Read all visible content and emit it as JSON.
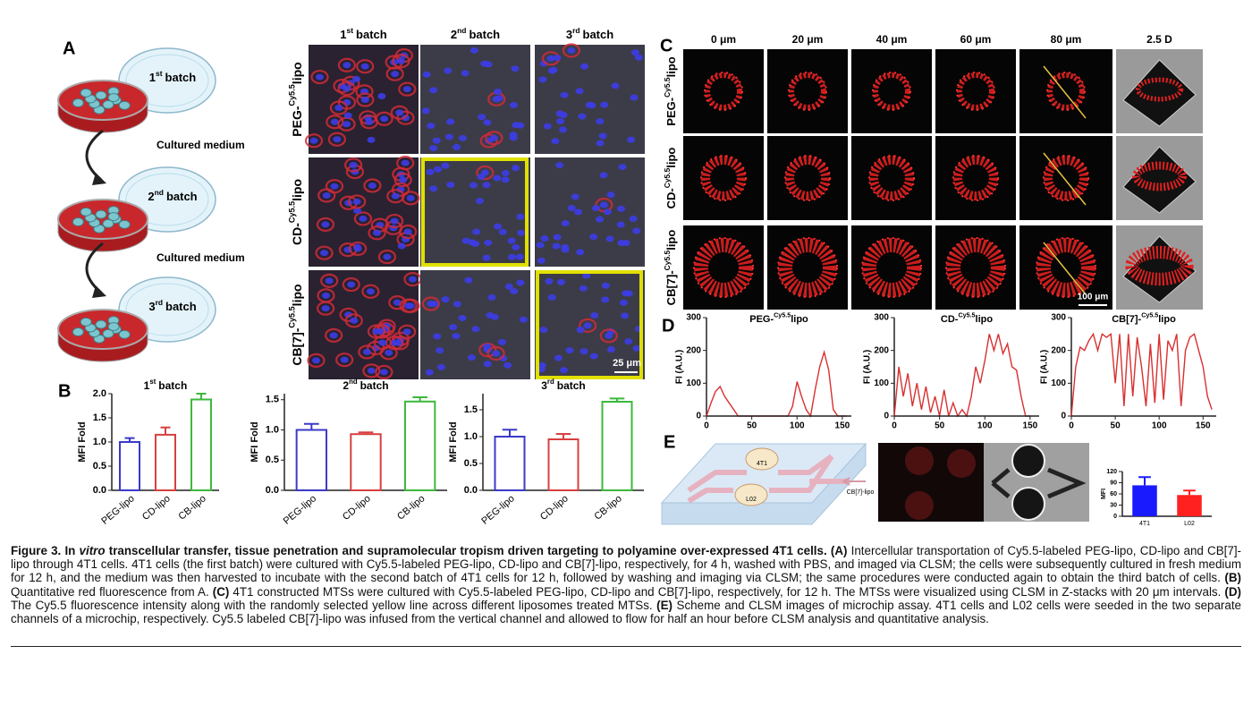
{
  "panel_labels": [
    "A",
    "B",
    "C",
    "D",
    "E"
  ],
  "scheme_a": {
    "dishes": [
      {
        "text": "1",
        "sup": "st",
        "tail": "batch"
      },
      {
        "text": "2",
        "sup": "nd",
        "tail": "batch"
      },
      {
        "text": "3",
        "sup": "rd",
        "tail": "batch"
      }
    ],
    "arrows": [
      "Cultured medium",
      "Cultured medium"
    ]
  },
  "microscopy": {
    "columns": [
      {
        "text": "1",
        "sup": "st",
        "tail": "batch"
      },
      {
        "text": "2",
        "sup": "nd",
        "tail": "batch"
      },
      {
        "text": "3",
        "sup": "rd",
        "tail": "batch"
      }
    ],
    "rows": [
      {
        "text": "PEG-",
        "sup": "Cy5.5",
        "tail": "lipo"
      },
      {
        "text": "CD-",
        "sup": "Cy5.5",
        "tail": "lipo"
      },
      {
        "text": "CB[7]-",
        "sup": "Cy5.5",
        "tail": "lipo"
      }
    ],
    "scale_bar": "25 μm"
  },
  "spheroids": {
    "columns": [
      "0 μm",
      "20 μm",
      "40 μm",
      "60 μm",
      "80 μm",
      "2.5 D"
    ],
    "rows": [
      {
        "text": "PEG-",
        "sup": "Cy5.5",
        "tail": "lipo"
      },
      {
        "text": "CD-",
        "sup": "Cy5.5",
        "tail": "lipo"
      },
      {
        "text": "CB[7]-",
        "sup": "Cy5.5",
        "tail": "lipo"
      }
    ],
    "scale_bar": "100 μm"
  },
  "microchip": {
    "channels": [
      "4T1",
      "L02"
    ],
    "inlet": "CB[7]-lipo"
  },
  "chart_data": [
    {
      "type": "bar",
      "title": {
        "text": "1",
        "sup": "st",
        "tail": "batch"
      },
      "ylabel": "MFI Fold",
      "categories": [
        "PEG-lipo",
        "CD-lipo",
        "CB-lipo"
      ],
      "values": [
        1.0,
        1.15,
        1.88
      ],
      "errors": [
        0.08,
        0.15,
        0.12
      ],
      "colors": [
        "#3a3ac8",
        "#d84040",
        "#3cb83c"
      ],
      "filled": false,
      "ylim": [
        0,
        2
      ],
      "yticks": [
        {
          "value": 0,
          "label": "0.0"
        },
        {
          "value": 0.5,
          "label": "0.5"
        },
        {
          "value": 1,
          "label": "1.0"
        },
        {
          "value": 1.5,
          "label": "1.5"
        },
        {
          "value": 2,
          "label": "2.0"
        }
      ]
    },
    {
      "type": "bar",
      "title": {
        "text": "2",
        "sup": "nd",
        "tail": "batch"
      },
      "ylabel": "MFI Fold",
      "categories": [
        "PEG-lipo",
        "CD-lipo",
        "CB-lipo"
      ],
      "values": [
        1.0,
        0.93,
        1.47
      ],
      "errors": [
        0.1,
        0.03,
        0.07
      ],
      "colors": [
        "#3a3ac8",
        "#d84040",
        "#3cb83c"
      ],
      "filled": false,
      "ylim": [
        0,
        1.6
      ],
      "yticks": [
        {
          "value": 0,
          "label": "0.0"
        },
        {
          "value": 0.5,
          "label": "0.5"
        },
        {
          "value": 1,
          "label": "1.0"
        },
        {
          "value": 1.5,
          "label": "1.5"
        }
      ]
    },
    {
      "type": "bar",
      "title": {
        "text": "3",
        "sup": "rd",
        "tail": "batch"
      },
      "ylabel": "MFI Fold",
      "categories": [
        "PEG-lipo",
        "CD-lipo",
        "CB-lipo"
      ],
      "values": [
        1.0,
        0.95,
        1.65
      ],
      "errors": [
        0.13,
        0.1,
        0.06
      ],
      "colors": [
        "#3a3ac8",
        "#d84040",
        "#3cb83c"
      ],
      "filled": false,
      "ylim": [
        0,
        1.8
      ],
      "yticks": [
        {
          "value": 0,
          "label": "0.0"
        },
        {
          "value": 0.5,
          "label": "0.5"
        },
        {
          "value": 1,
          "label": "1.0"
        },
        {
          "value": 1.5,
          "label": "1.5"
        }
      ]
    },
    {
      "type": "line",
      "title": {
        "text": "PEG-",
        "sup": "Cy5.5",
        "tail": "lipo"
      },
      "ylabel": "FI (A.U.)",
      "x": [
        0,
        5,
        10,
        15,
        20,
        25,
        30,
        35,
        40,
        45,
        50,
        55,
        60,
        65,
        70,
        75,
        80,
        85,
        90,
        95,
        100,
        105,
        110,
        115,
        120,
        125,
        130,
        135,
        140,
        145,
        150,
        155
      ],
      "series": [
        {
          "color": "#d83030",
          "values": [
            0,
            40,
            75,
            90,
            60,
            40,
            20,
            0,
            0,
            0,
            0,
            0,
            0,
            0,
            0,
            0,
            0,
            0,
            0,
            30,
            105,
            60,
            20,
            0,
            80,
            150,
            195,
            140,
            20,
            0,
            0,
            0
          ]
        }
      ],
      "xlim": [
        0,
        160
      ],
      "ylim": [
        0,
        300
      ],
      "xticks": [
        0,
        50,
        100,
        150
      ],
      "yticks": [
        0,
        100,
        200,
        300
      ]
    },
    {
      "type": "line",
      "title": {
        "text": "CD-",
        "sup": "Cy5.5",
        "tail": "lipo"
      },
      "ylabel": "FI (A.U.)",
      "x": [
        0,
        5,
        10,
        15,
        20,
        25,
        30,
        35,
        40,
        45,
        50,
        55,
        60,
        65,
        70,
        75,
        80,
        85,
        90,
        95,
        100,
        105,
        110,
        115,
        120,
        125,
        130,
        135,
        140,
        145,
        150
      ],
      "series": [
        {
          "color": "#d83030",
          "values": [
            0,
            150,
            60,
            130,
            30,
            100,
            20,
            90,
            10,
            60,
            0,
            80,
            0,
            40,
            0,
            20,
            0,
            60,
            150,
            100,
            170,
            250,
            200,
            250,
            190,
            220,
            150,
            140,
            60,
            0,
            0
          ]
        }
      ],
      "xlim": [
        0,
        160
      ],
      "ylim": [
        0,
        300
      ],
      "xticks": [
        0,
        50,
        100,
        150
      ],
      "yticks": [
        0,
        100,
        200,
        300
      ]
    },
    {
      "type": "line",
      "title": {
        "text": "CB[7]-",
        "sup": "Cy5.5",
        "tail": "lipo"
      },
      "ylabel": "FI (A.U.)",
      "x": [
        0,
        5,
        10,
        15,
        20,
        25,
        30,
        35,
        40,
        45,
        50,
        55,
        60,
        65,
        70,
        75,
        80,
        85,
        90,
        95,
        100,
        105,
        110,
        115,
        120,
        125,
        130,
        135,
        140,
        145,
        150,
        155,
        160
      ],
      "series": [
        {
          "color": "#d83030",
          "values": [
            0,
            150,
            210,
            200,
            230,
            250,
            200,
            250,
            240,
            250,
            100,
            250,
            30,
            250,
            60,
            240,
            150,
            30,
            220,
            40,
            250,
            50,
            230,
            200,
            250,
            30,
            200,
            240,
            250,
            200,
            150,
            60,
            20
          ]
        }
      ],
      "xlim": [
        0,
        165
      ],
      "ylim": [
        0,
        300
      ],
      "xticks": [
        0,
        50,
        100,
        150
      ],
      "yticks": [
        0,
        100,
        200,
        300
      ]
    },
    {
      "type": "bar",
      "ylabel": "MFI",
      "categories": [
        "4T1",
        "L02"
      ],
      "values": [
        83,
        57
      ],
      "errors": [
        22,
        12
      ],
      "colors": [
        "#1a1aff",
        "#ff2020"
      ],
      "filled": true,
      "ylim": [
        0,
        120
      ],
      "yticks": [
        0,
        30,
        60,
        90,
        120
      ]
    }
  ],
  "caption": {
    "segments": [
      "Figure 3. In ",
      "vitro",
      " transcellular transfer, tissue penetration and supramolecular tropism driven targeting to polyamine over-expressed 4T1 cells. ",
      "(A)",
      " Intercellular transportation of Cy5.5-labeled PEG-lipo, CD-lipo and CB[7]-lipo through 4T1 cells. 4T1 cells (the first batch) were cultured with Cy5.5-labeled PEG-lipo, CD-lipo and CB[7]-lipo, respectively, for 4 h, washed with PBS, and imaged via CLSM; the cells were subsequently cultured in fresh medium for 12 h, and the medium was then harvested to incubate with the second batch of 4T1 cells for 12 h, followed by washing and imaging via CLSM; the same procedures were conducted again to obtain the third batch of cells. ",
      "(B)",
      " Quantitative red fluorescence from A. ",
      "(C)",
      " 4T1 constructed MTSs were cultured with Cy5.5-labeled PEG-lipo, CD-lipo and CB[7]-lipo, respectively, for 12 h. The MTSs were visualized using CLSM in Z-stacks with 20 μm intervals. ",
      "(D)",
      " The Cy5.5 fluorescence intensity along with the randomly selected yellow line across different liposomes treated MTSs. ",
      "(E)",
      " Scheme and CLSM images of microchip assay. 4T1 cells and L02 cells were seeded in the two separate channels of a microchip, respectively. Cy5.5 labeled CB[7]-lipo was infused from the vertical channel and allowed to flow for half an hour before CLSM analysis and quantitative analysis."
    ]
  }
}
